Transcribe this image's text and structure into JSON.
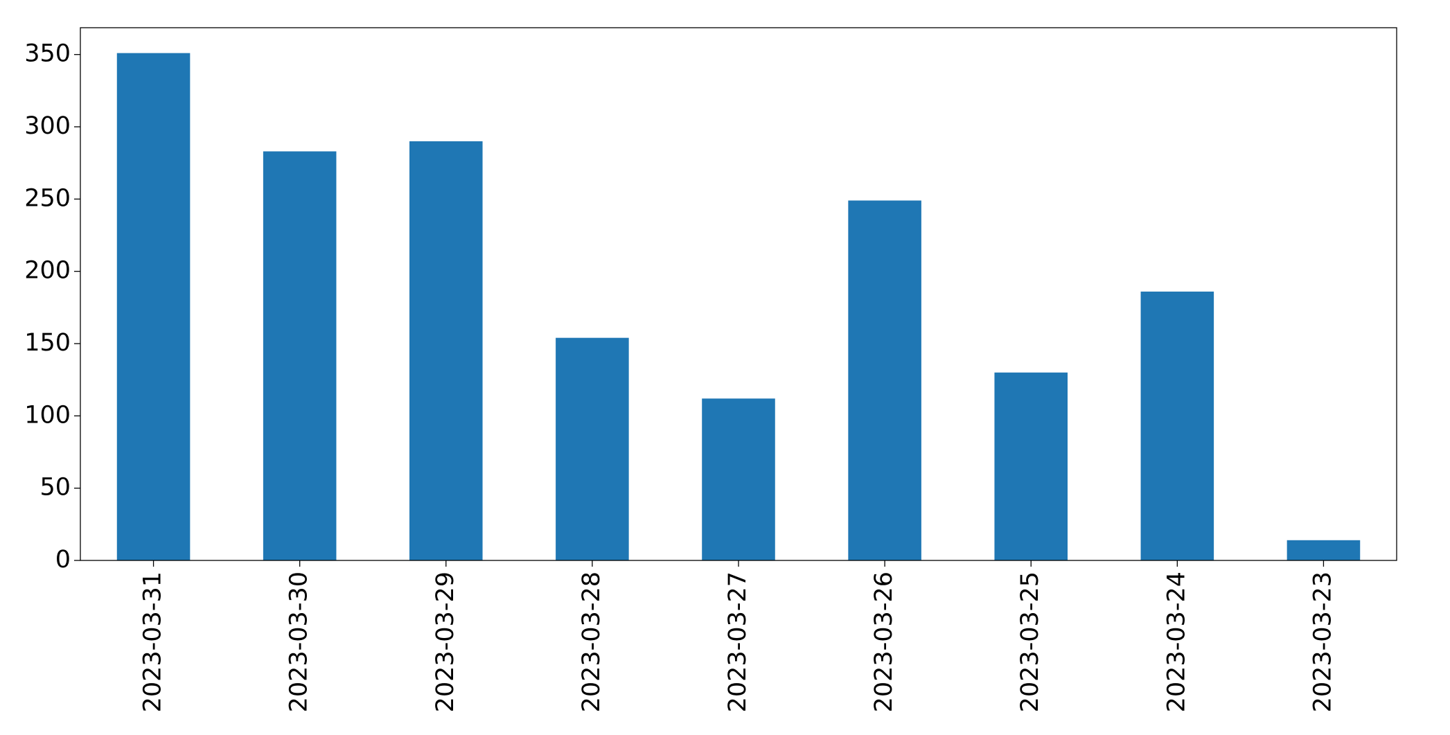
{
  "chart_data": {
    "type": "bar",
    "categories": [
      "2023-03-31",
      "2023-03-30",
      "2023-03-29",
      "2023-03-28",
      "2023-03-27",
      "2023-03-26",
      "2023-03-25",
      "2023-03-24",
      "2023-03-23"
    ],
    "values": [
      351,
      283,
      290,
      154,
      112,
      249,
      130,
      186,
      14
    ],
    "color": "#1f77b4",
    "ylim": [
      0,
      368.55
    ],
    "yticks": [
      0,
      50,
      100,
      150,
      200,
      250,
      300,
      350
    ],
    "grid": false
  }
}
